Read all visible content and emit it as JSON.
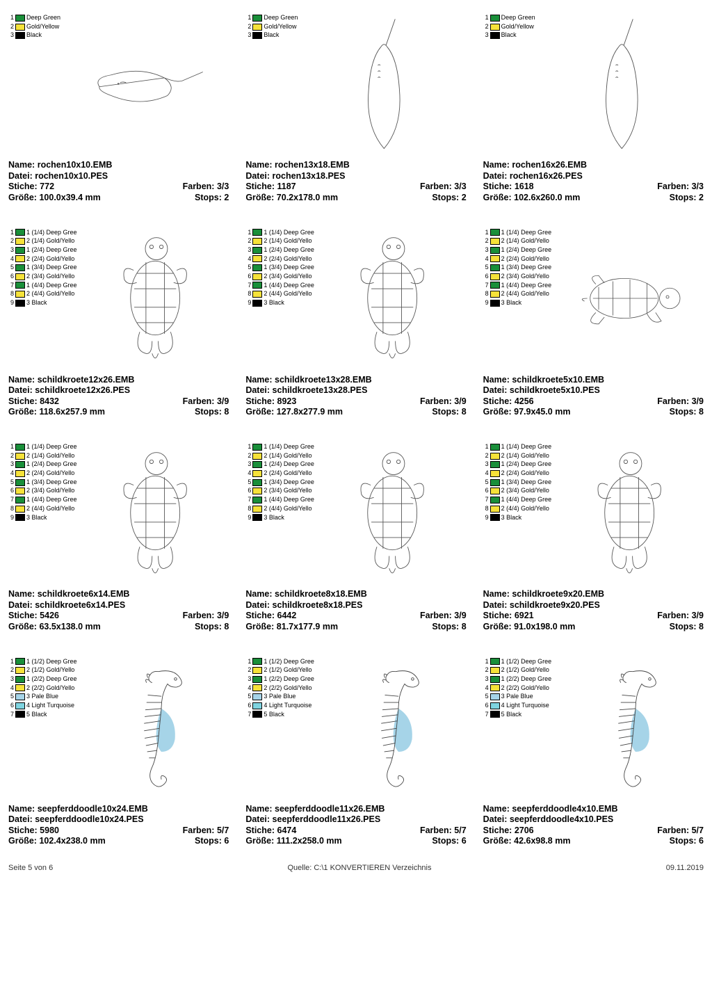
{
  "colors": {
    "deep_green": "#1a8f3a",
    "gold_yellow": "#f6e23a",
    "black": "#000000",
    "pale_blue": "#a6d4e8",
    "light_turquoise": "#7fd4e0"
  },
  "items": [
    {
      "legend": [
        {
          "n": "1",
          "c": "deep_green",
          "t": "Deep Green"
        },
        {
          "n": "2",
          "c": "gold_yellow",
          "t": "Gold/Yellow"
        },
        {
          "n": "3",
          "c": "black",
          "t": "Black"
        }
      ],
      "shape": "ray_h",
      "name": "rochen10x10.EMB",
      "datei": "rochen10x10.PES",
      "stiche": "772",
      "farben": "3/3",
      "groesse": "100.0x39.4 mm",
      "stops": "2"
    },
    {
      "legend": [
        {
          "n": "1",
          "c": "deep_green",
          "t": "Deep Green"
        },
        {
          "n": "2",
          "c": "gold_yellow",
          "t": "Gold/Yellow"
        },
        {
          "n": "3",
          "c": "black",
          "t": "Black"
        }
      ],
      "shape": "ray_v",
      "name": "rochen13x18.EMB",
      "datei": "rochen13x18.PES",
      "stiche": "1187",
      "farben": "3/3",
      "groesse": "70.2x178.0 mm",
      "stops": "2"
    },
    {
      "legend": [
        {
          "n": "1",
          "c": "deep_green",
          "t": "Deep Green"
        },
        {
          "n": "2",
          "c": "gold_yellow",
          "t": "Gold/Yellow"
        },
        {
          "n": "3",
          "c": "black",
          "t": "Black"
        }
      ],
      "shape": "ray_v",
      "name": "rochen16x26.EMB",
      "datei": "rochen16x26.PES",
      "stiche": "1618",
      "farben": "3/3",
      "groesse": "102.6x260.0 mm",
      "stops": "2"
    },
    {
      "legend": [
        {
          "n": "1",
          "c": "deep_green",
          "t": "1 (1/4) Deep Gree"
        },
        {
          "n": "2",
          "c": "gold_yellow",
          "t": "2 (1/4) Gold/Yello"
        },
        {
          "n": "3",
          "c": "deep_green",
          "t": "1 (2/4) Deep Gree"
        },
        {
          "n": "4",
          "c": "gold_yellow",
          "t": "2 (2/4) Gold/Yello"
        },
        {
          "n": "5",
          "c": "deep_green",
          "t": "1 (3/4) Deep Gree"
        },
        {
          "n": "6",
          "c": "gold_yellow",
          "t": "2 (3/4) Gold/Yello"
        },
        {
          "n": "7",
          "c": "deep_green",
          "t": "1 (4/4) Deep Gree"
        },
        {
          "n": "8",
          "c": "gold_yellow",
          "t": "2 (4/4) Gold/Yello"
        },
        {
          "n": "9",
          "c": "black",
          "t": "3 Black"
        }
      ],
      "shape": "turtle_v",
      "name": "schildkroete12x26.EMB",
      "datei": "schildkroete12x26.PES",
      "stiche": "8432",
      "farben": "3/9",
      "groesse": "118.6x257.9 mm",
      "stops": "8"
    },
    {
      "legend": [
        {
          "n": "1",
          "c": "deep_green",
          "t": "1 (1/4) Deep Gree"
        },
        {
          "n": "2",
          "c": "gold_yellow",
          "t": "2 (1/4) Gold/Yello"
        },
        {
          "n": "3",
          "c": "deep_green",
          "t": "1 (2/4) Deep Gree"
        },
        {
          "n": "4",
          "c": "gold_yellow",
          "t": "2 (2/4) Gold/Yello"
        },
        {
          "n": "5",
          "c": "deep_green",
          "t": "1 (3/4) Deep Gree"
        },
        {
          "n": "6",
          "c": "gold_yellow",
          "t": "2 (3/4) Gold/Yello"
        },
        {
          "n": "7",
          "c": "deep_green",
          "t": "1 (4/4) Deep Gree"
        },
        {
          "n": "8",
          "c": "gold_yellow",
          "t": "2 (4/4) Gold/Yello"
        },
        {
          "n": "9",
          "c": "black",
          "t": "3 Black"
        }
      ],
      "shape": "turtle_v",
      "name": "schildkroete13x28.EMB",
      "datei": "schildkroete13x28.PES",
      "stiche": "8923",
      "farben": "3/9",
      "groesse": "127.8x277.9 mm",
      "stops": "8"
    },
    {
      "legend": [
        {
          "n": "1",
          "c": "deep_green",
          "t": "1 (1/4) Deep Gree"
        },
        {
          "n": "2",
          "c": "gold_yellow",
          "t": "2 (1/4) Gold/Yello"
        },
        {
          "n": "3",
          "c": "deep_green",
          "t": "1 (2/4) Deep Gree"
        },
        {
          "n": "4",
          "c": "gold_yellow",
          "t": "2 (2/4) Gold/Yello"
        },
        {
          "n": "5",
          "c": "deep_green",
          "t": "1 (3/4) Deep Gree"
        },
        {
          "n": "6",
          "c": "gold_yellow",
          "t": "2 (3/4) Gold/Yello"
        },
        {
          "n": "7",
          "c": "deep_green",
          "t": "1 (4/4) Deep Gree"
        },
        {
          "n": "8",
          "c": "gold_yellow",
          "t": "2 (4/4) Gold/Yello"
        },
        {
          "n": "9",
          "c": "black",
          "t": "3 Black"
        }
      ],
      "shape": "turtle_h",
      "name": "schildkroete5x10.EMB",
      "datei": "schildkroete5x10.PES",
      "stiche": "4256",
      "farben": "3/9",
      "groesse": "97.9x45.0 mm",
      "stops": "8"
    },
    {
      "legend": [
        {
          "n": "1",
          "c": "deep_green",
          "t": "1 (1/4) Deep Gree"
        },
        {
          "n": "2",
          "c": "gold_yellow",
          "t": "2 (1/4) Gold/Yello"
        },
        {
          "n": "3",
          "c": "deep_green",
          "t": "1 (2/4) Deep Gree"
        },
        {
          "n": "4",
          "c": "gold_yellow",
          "t": "2 (2/4) Gold/Yello"
        },
        {
          "n": "5",
          "c": "deep_green",
          "t": "1 (3/4) Deep Gree"
        },
        {
          "n": "6",
          "c": "gold_yellow",
          "t": "2 (3/4) Gold/Yello"
        },
        {
          "n": "7",
          "c": "deep_green",
          "t": "1 (4/4) Deep Gree"
        },
        {
          "n": "8",
          "c": "gold_yellow",
          "t": "2 (4/4) Gold/Yello"
        },
        {
          "n": "9",
          "c": "black",
          "t": "3 Black"
        }
      ],
      "shape": "turtle_v",
      "name": "schildkroete6x14.EMB",
      "datei": "schildkroete6x14.PES",
      "stiche": "5426",
      "farben": "3/9",
      "groesse": "63.5x138.0 mm",
      "stops": "8"
    },
    {
      "legend": [
        {
          "n": "1",
          "c": "deep_green",
          "t": "1 (1/4) Deep Gree"
        },
        {
          "n": "2",
          "c": "gold_yellow",
          "t": "2 (1/4) Gold/Yello"
        },
        {
          "n": "3",
          "c": "deep_green",
          "t": "1 (2/4) Deep Gree"
        },
        {
          "n": "4",
          "c": "gold_yellow",
          "t": "2 (2/4) Gold/Yello"
        },
        {
          "n": "5",
          "c": "deep_green",
          "t": "1 (3/4) Deep Gree"
        },
        {
          "n": "6",
          "c": "gold_yellow",
          "t": "2 (3/4) Gold/Yello"
        },
        {
          "n": "7",
          "c": "deep_green",
          "t": "1 (4/4) Deep Gree"
        },
        {
          "n": "8",
          "c": "gold_yellow",
          "t": "2 (4/4) Gold/Yello"
        },
        {
          "n": "9",
          "c": "black",
          "t": "3 Black"
        }
      ],
      "shape": "turtle_v",
      "name": "schildkroete8x18.EMB",
      "datei": "schildkroete8x18.PES",
      "stiche": "6442",
      "farben": "3/9",
      "groesse": "81.7x177.9 mm",
      "stops": "8"
    },
    {
      "legend": [
        {
          "n": "1",
          "c": "deep_green",
          "t": "1 (1/4) Deep Gree"
        },
        {
          "n": "2",
          "c": "gold_yellow",
          "t": "2 (1/4) Gold/Yello"
        },
        {
          "n": "3",
          "c": "deep_green",
          "t": "1 (2/4) Deep Gree"
        },
        {
          "n": "4",
          "c": "gold_yellow",
          "t": "2 (2/4) Gold/Yello"
        },
        {
          "n": "5",
          "c": "deep_green",
          "t": "1 (3/4) Deep Gree"
        },
        {
          "n": "6",
          "c": "gold_yellow",
          "t": "2 (3/4) Gold/Yello"
        },
        {
          "n": "7",
          "c": "deep_green",
          "t": "1 (4/4) Deep Gree"
        },
        {
          "n": "8",
          "c": "gold_yellow",
          "t": "2 (4/4) Gold/Yello"
        },
        {
          "n": "9",
          "c": "black",
          "t": "3 Black"
        }
      ],
      "shape": "turtle_v",
      "name": "schildkroete9x20.EMB",
      "datei": "schildkroete9x20.PES",
      "stiche": "6921",
      "farben": "3/9",
      "groesse": "91.0x198.0 mm",
      "stops": "8"
    },
    {
      "legend": [
        {
          "n": "1",
          "c": "deep_green",
          "t": "1 (1/2) Deep Gree"
        },
        {
          "n": "2",
          "c": "gold_yellow",
          "t": "2 (1/2) Gold/Yello"
        },
        {
          "n": "3",
          "c": "deep_green",
          "t": "1 (2/2) Deep Gree"
        },
        {
          "n": "4",
          "c": "gold_yellow",
          "t": "2 (2/2) Gold/Yello"
        },
        {
          "n": "5",
          "c": "pale_blue",
          "t": "3 Pale Blue"
        },
        {
          "n": "6",
          "c": "light_turquoise",
          "t": "4 Light Turquoise"
        },
        {
          "n": "7",
          "c": "black",
          "t": "5 Black"
        }
      ],
      "shape": "seahorse",
      "name": "seepferddoodle10x24.EMB",
      "datei": "seepferddoodle10x24.PES",
      "stiche": "5980",
      "farben": "5/7",
      "groesse": "102.4x238.0 mm",
      "stops": "6"
    },
    {
      "legend": [
        {
          "n": "1",
          "c": "deep_green",
          "t": "1 (1/2) Deep Gree"
        },
        {
          "n": "2",
          "c": "gold_yellow",
          "t": "2 (1/2) Gold/Yello"
        },
        {
          "n": "3",
          "c": "deep_green",
          "t": "1 (2/2) Deep Gree"
        },
        {
          "n": "4",
          "c": "gold_yellow",
          "t": "2 (2/2) Gold/Yello"
        },
        {
          "n": "5",
          "c": "pale_blue",
          "t": "3 Pale Blue"
        },
        {
          "n": "6",
          "c": "light_turquoise",
          "t": "4 Light Turquoise"
        },
        {
          "n": "7",
          "c": "black",
          "t": "5 Black"
        }
      ],
      "shape": "seahorse",
      "name": "seepferddoodle11x26.EMB",
      "datei": "seepferddoodle11x26.PES",
      "stiche": "6474",
      "farben": "5/7",
      "groesse": "111.2x258.0 mm",
      "stops": "6"
    },
    {
      "legend": [
        {
          "n": "1",
          "c": "deep_green",
          "t": "1 (1/2) Deep Gree"
        },
        {
          "n": "2",
          "c": "gold_yellow",
          "t": "2 (1/2) Gold/Yello"
        },
        {
          "n": "3",
          "c": "deep_green",
          "t": "1 (2/2) Deep Gree"
        },
        {
          "n": "4",
          "c": "gold_yellow",
          "t": "2 (2/2) Gold/Yello"
        },
        {
          "n": "5",
          "c": "pale_blue",
          "t": "3 Pale Blue"
        },
        {
          "n": "6",
          "c": "light_turquoise",
          "t": "4 Light Turquoise"
        },
        {
          "n": "7",
          "c": "black",
          "t": "5 Black"
        }
      ],
      "shape": "seahorse",
      "name": "seepferddoodle4x10.EMB",
      "datei": "seepferddoodle4x10.PES",
      "stiche": "2706",
      "farben": "5/7",
      "groesse": "42.6x98.8 mm",
      "stops": "6"
    }
  ],
  "labels": {
    "name": "Name:",
    "datei": "Datei:",
    "stiche": "Stiche:",
    "farben": "Farben:",
    "groesse": "Größe:",
    "stops": "Stops:"
  },
  "footer": {
    "left": "Seite 5 von 6",
    "center": "Quelle: C:\\1 KONVERTIEREN Verzeichnis",
    "right": "09.11.2019"
  }
}
